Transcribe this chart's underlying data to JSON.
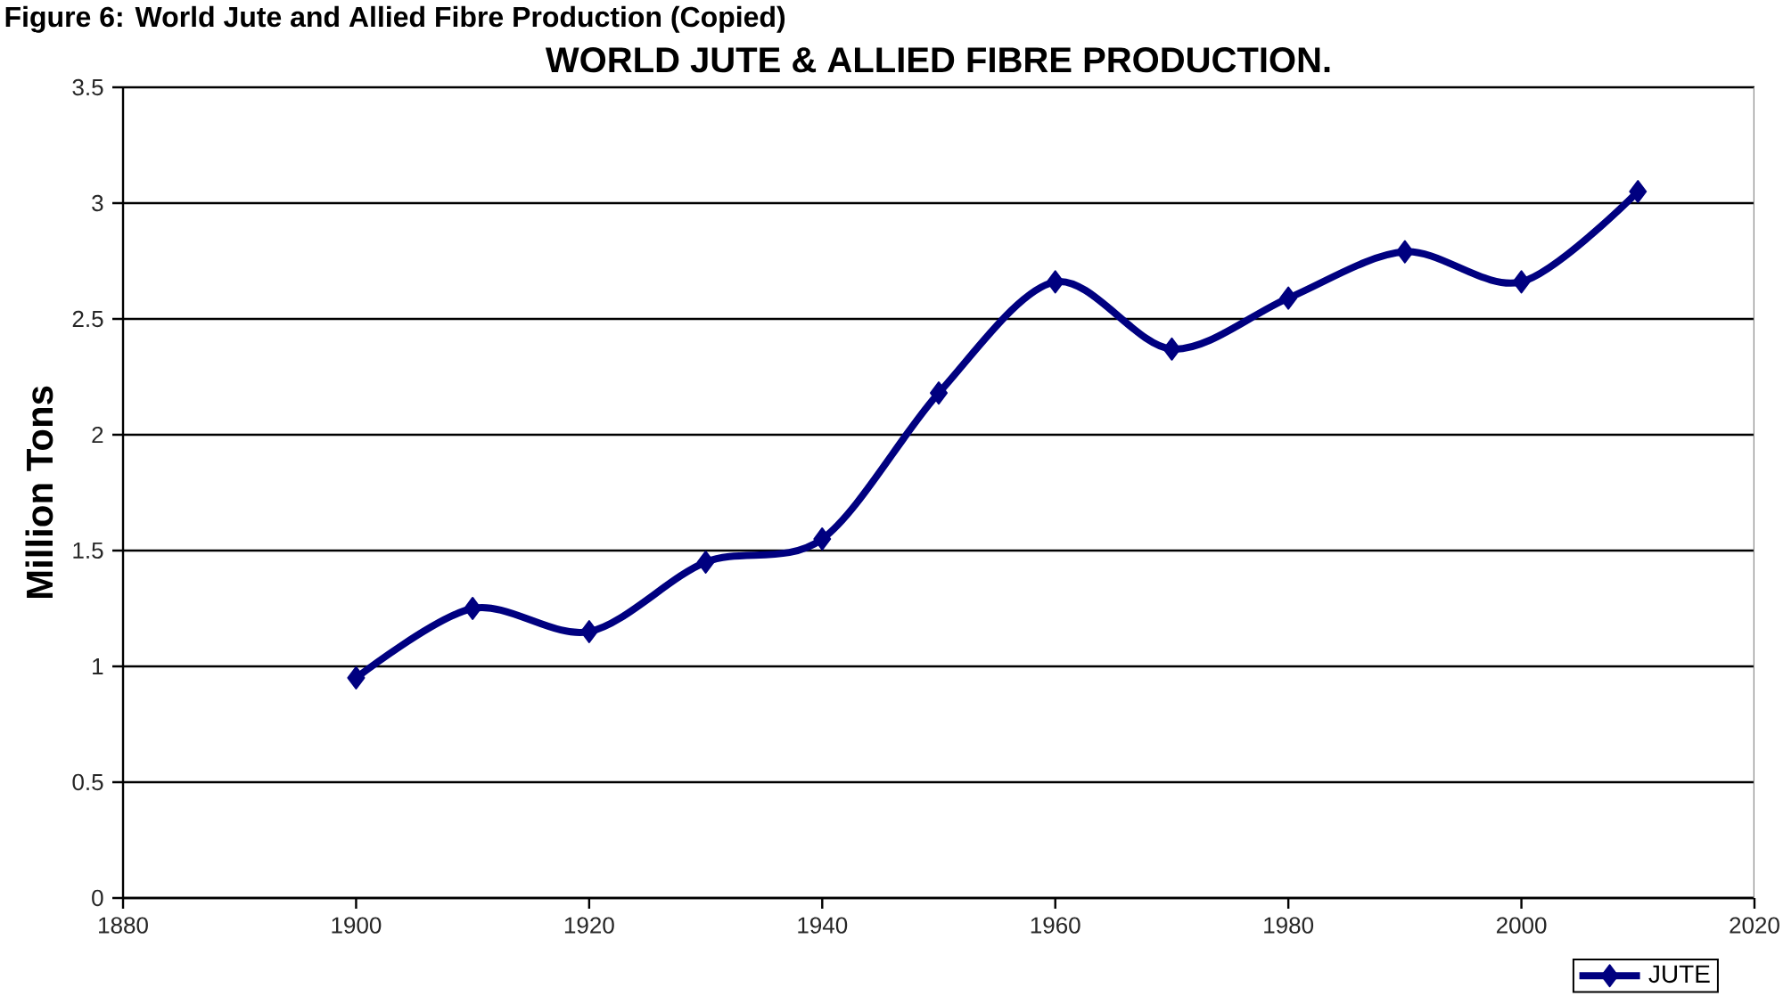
{
  "chart_data": {
    "type": "line",
    "title": "WORLD JUTE & ALLIED FIBRE PRODUCTION.",
    "ylabel": "Million Tons",
    "annotations": [
      "Figure 6: World Jute and Allied Fibre Production (Copied)"
    ],
    "x": [
      1900,
      1910,
      1920,
      1930,
      1940,
      1950,
      1960,
      1970,
      1980,
      1990,
      2000,
      2010
    ],
    "series": [
      {
        "name": "JUTE",
        "color": "#000080",
        "values": [
          0.95,
          1.25,
          1.15,
          1.45,
          1.55,
          2.18,
          2.66,
          2.37,
          2.59,
          2.79,
          2.66,
          3.05
        ]
      }
    ],
    "xlim": [
      1880,
      2020
    ],
    "xticks": [
      1880,
      1900,
      1920,
      1940,
      1960,
      1980,
      2000,
      2020
    ],
    "ylim": [
      0,
      3.5
    ],
    "yticks": [
      0,
      0.5,
      1,
      1.5,
      2,
      2.5,
      3,
      3.5
    ],
    "grid": "y",
    "legend": "bottom right",
    "marker": "diamond"
  }
}
